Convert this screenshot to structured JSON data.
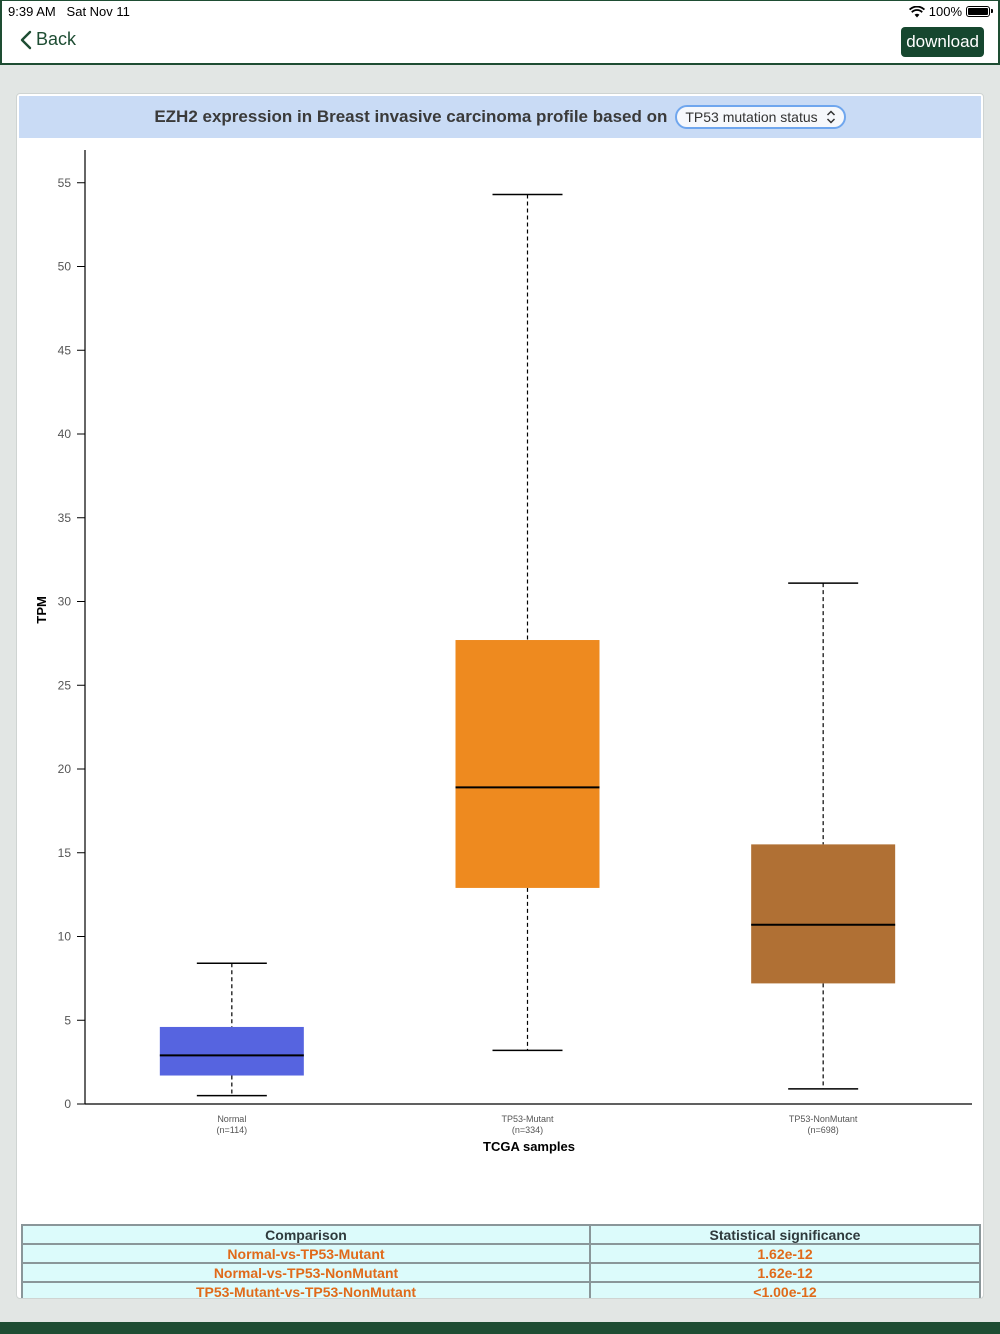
{
  "status_bar": {
    "time": "9:39 AM",
    "date": "Sat Nov 11",
    "battery": "100%"
  },
  "nav": {
    "back_label": "Back",
    "download_label": "download"
  },
  "header": {
    "title": "EZH2 expression in Breast invasive carcinoma profile based on",
    "select_value": "TP53 mutation status"
  },
  "chart_data": {
    "type": "boxplot",
    "title": "EZH2 expression in Breast invasive carcinoma profile based on",
    "xlabel": "TCGA samples",
    "ylabel": "TPM",
    "ylim": [
      0,
      57
    ],
    "yticks": [
      0,
      5,
      10,
      15,
      20,
      25,
      30,
      35,
      40,
      45,
      50,
      55
    ],
    "grid": false,
    "categories": [
      {
        "name": "Normal",
        "n": "(n=114)",
        "min": 0.5,
        "q1": 1.7,
        "median": 2.9,
        "q3": 4.6,
        "max": 8.4,
        "color": "#5664e0"
      },
      {
        "name": "TP53-Mutant",
        "n": "(n=334)",
        "min": 3.2,
        "q1": 12.9,
        "median": 18.9,
        "q3": 27.7,
        "max": 54.3,
        "color": "#ee8a1f"
      },
      {
        "name": "TP53-NonMutant",
        "n": "(n=698)",
        "min": 0.9,
        "q1": 7.2,
        "median": 10.7,
        "q3": 15.5,
        "max": 31.1,
        "color": "#b07034"
      }
    ]
  },
  "table": {
    "headers": [
      "Comparison",
      "Statistical significance"
    ],
    "rows": [
      {
        "comparison": "Normal-vs-TP53-Mutant",
        "significance": "1.62e-12"
      },
      {
        "comparison": "Normal-vs-TP53-NonMutant",
        "significance": "1.62e-12"
      },
      {
        "comparison": "TP53-Mutant-vs-TP53-NonMutant",
        "significance": "<1.00e-12"
      }
    ]
  }
}
